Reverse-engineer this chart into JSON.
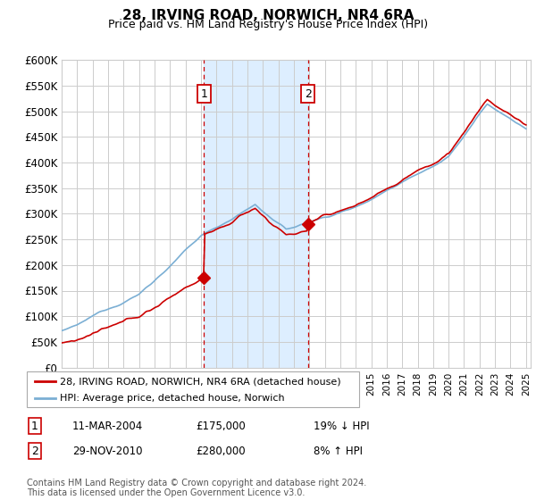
{
  "title": "28, IRVING ROAD, NORWICH, NR4 6RA",
  "subtitle": "Price paid vs. HM Land Registry's House Price Index (HPI)",
  "ylim": [
    0,
    600000
  ],
  "yticks": [
    0,
    50000,
    100000,
    150000,
    200000,
    250000,
    300000,
    350000,
    400000,
    450000,
    500000,
    550000,
    600000
  ],
  "hpi_color": "#7bafd4",
  "price_color": "#cc0000",
  "shading_color": "#ddeeff",
  "grid_color": "#cccccc",
  "background_color": "#ffffff",
  "legend_label_price": "28, IRVING ROAD, NORWICH, NR4 6RA (detached house)",
  "legend_label_hpi": "HPI: Average price, detached house, Norwich",
  "transaction1_date": "11-MAR-2004",
  "transaction1_price": 175000,
  "transaction2_date": "29-NOV-2010",
  "transaction2_price": 280000,
  "transaction1_hpi_rel": "19% ↓ HPI",
  "transaction2_hpi_rel": "8% ↑ HPI",
  "footnote": "Contains HM Land Registry data © Crown copyright and database right 2024.\nThis data is licensed under the Open Government Licence v3.0.",
  "transaction1_x": 2004.19,
  "transaction2_x": 2010.91
}
